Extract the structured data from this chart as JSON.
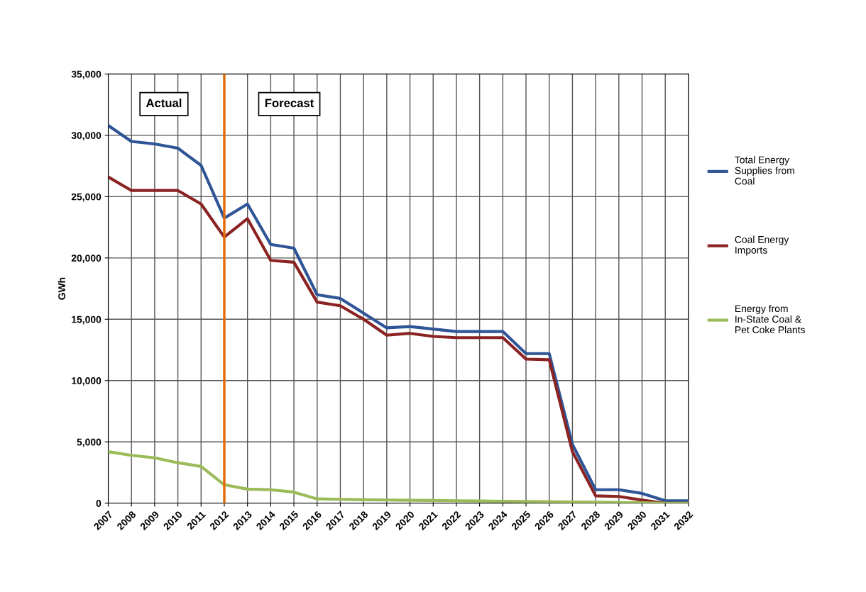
{
  "chart_data": {
    "type": "line",
    "ylabel": "GWh",
    "categories": [
      "2007",
      "2008",
      "2009",
      "2010",
      "2011",
      "2012",
      "2013",
      "2014",
      "2015",
      "2016",
      "2017",
      "2018",
      "2019",
      "2020",
      "2021",
      "2022",
      "2023",
      "2024",
      "2025",
      "2026",
      "2027",
      "2028",
      "2029",
      "2030",
      "2031",
      "2032"
    ],
    "series": [
      {
        "name": "Total Energy Supplies from Coal",
        "color": "#2f5597",
        "values": [
          30800,
          29500,
          29300,
          28950,
          27550,
          23250,
          24400,
          21100,
          20800,
          17000,
          16700,
          15500,
          14300,
          14400,
          14200,
          14000,
          14000,
          14000,
          12200,
          12200,
          4800,
          1100,
          1100,
          800,
          200,
          200
        ]
      },
      {
        "name": "Coal Energy Imports",
        "color": "#8b2323",
        "values": [
          26600,
          25500,
          25500,
          25500,
          24400,
          21700,
          23200,
          19800,
          19650,
          16400,
          16100,
          15000,
          13700,
          13850,
          13600,
          13500,
          13500,
          13500,
          11750,
          11700,
          4200,
          600,
          550,
          250,
          0,
          0
        ]
      },
      {
        "name": "Energy from In-State Coal & Pet Coke Plants",
        "color": "#9bbb59",
        "values": [
          4200,
          3900,
          3700,
          3300,
          3000,
          1500,
          1150,
          1100,
          900,
          350,
          320,
          280,
          260,
          240,
          220,
          200,
          180,
          160,
          140,
          120,
          100,
          80,
          60,
          40,
          0,
          0
        ]
      }
    ],
    "ylim": [
      0,
      35000
    ],
    "yticks": [
      {
        "value": 0,
        "label": "0"
      },
      {
        "value": 5000,
        "label": "5,000"
      },
      {
        "value": 10000,
        "label": "10,000"
      },
      {
        "value": 15000,
        "label": "15,000"
      },
      {
        "value": 20000,
        "label": "20,000"
      },
      {
        "value": 25000,
        "label": "25,000"
      },
      {
        "value": 30000,
        "label": "30,000"
      },
      {
        "value": 35000,
        "label": "35,000"
      }
    ],
    "ref_lines": [
      {
        "axis": "x",
        "value": "2012",
        "color": "#e36c0a"
      }
    ],
    "annotations": [
      "Actual",
      "Forecast"
    ],
    "grid": true,
    "legend": "right",
    "marker": "none",
    "line_style": "solid"
  }
}
